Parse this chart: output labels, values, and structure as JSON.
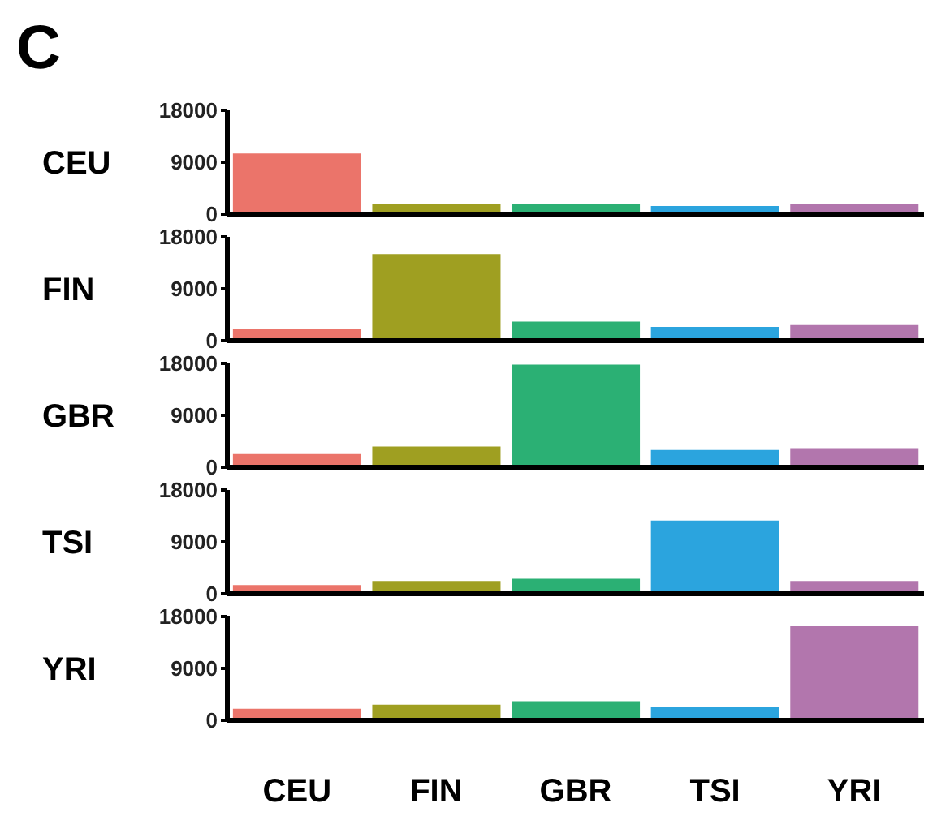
{
  "chart_data": [
    {
      "type": "bar",
      "title": "C",
      "ylabel": "CEU",
      "categories": [
        null,
        null,
        null,
        null,
        null
      ],
      "values": [
        10500,
        1700,
        1700,
        1400,
        1700
      ],
      "colors": [
        "#eb746a",
        "#9f9f21",
        "#2bb074",
        "#2ba4de",
        "#b276ad"
      ],
      "ylim": [
        0,
        18000
      ],
      "yticks": [
        0,
        9000,
        18000
      ],
      "tick_labels": "y"
    },
    {
      "type": "bar",
      "ylabel": "FIN",
      "categories": [
        null,
        null,
        null,
        null,
        null
      ],
      "values": [
        2000,
        15000,
        3300,
        2400,
        2700
      ],
      "colors": [
        "#eb746a",
        "#9f9f21",
        "#2bb074",
        "#2ba4de",
        "#b276ad"
      ],
      "ylim": [
        0,
        18000
      ],
      "yticks": [
        0,
        9000,
        18000
      ],
      "tick_labels": "y"
    },
    {
      "type": "bar",
      "ylabel": "GBR",
      "categories": [
        null,
        null,
        null,
        null,
        null
      ],
      "values": [
        2300,
        3600,
        17800,
        3000,
        3300
      ],
      "colors": [
        "#eb746a",
        "#9f9f21",
        "#2bb074",
        "#2ba4de",
        "#b276ad"
      ],
      "ylim": [
        0,
        18000
      ],
      "yticks": [
        0,
        9000,
        18000
      ],
      "tick_labels": "y"
    },
    {
      "type": "bar",
      "ylabel": "TSI",
      "categories": [
        null,
        null,
        null,
        null,
        null
      ],
      "values": [
        1500,
        2200,
        2600,
        12700,
        2200
      ],
      "colors": [
        "#eb746a",
        "#9f9f21",
        "#2bb074",
        "#2ba4de",
        "#b276ad"
      ],
      "ylim": [
        0,
        18000
      ],
      "yticks": [
        0,
        9000,
        18000
      ],
      "tick_labels": "y"
    },
    {
      "type": "bar",
      "ylabel": "YRI",
      "categories": [
        "CEU",
        "FIN",
        "GBR",
        "TSI",
        "YRI"
      ],
      "values": [
        2000,
        2700,
        3300,
        2400,
        16300
      ],
      "colors": [
        "#eb746a",
        "#9f9f21",
        "#2bb074",
        "#2ba4de",
        "#b276ad"
      ],
      "ylim": [
        0,
        18000
      ],
      "yticks": [
        0,
        9000,
        18000
      ]
    }
  ]
}
